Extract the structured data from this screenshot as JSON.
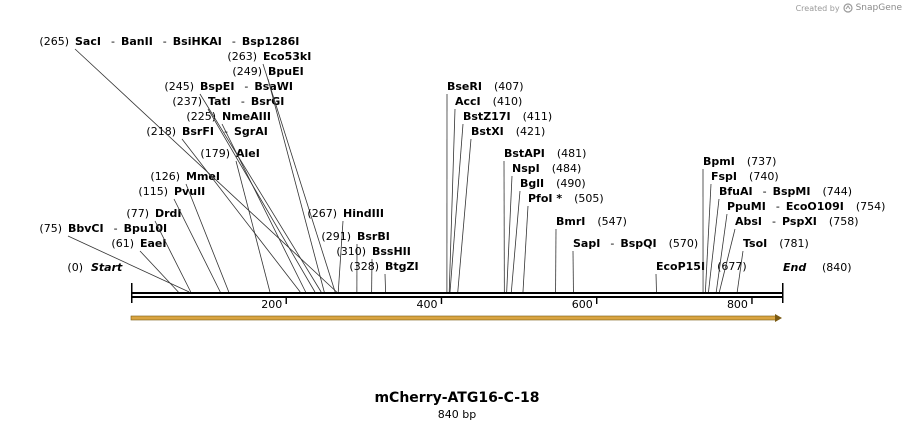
{
  "credit": {
    "prefix": "Created by",
    "brand": "SnapGene"
  },
  "map": {
    "title": "mCherry-ATG16-C-18",
    "length_label": "840 bp",
    "length_bp": 840,
    "start": {
      "label": "Start",
      "pos": "(0)"
    },
    "end": {
      "label": "End",
      "pos": "(840)"
    },
    "ticks": [
      200,
      400,
      600,
      800
    ],
    "feature_arrow_color": "#d9a441",
    "sites": [
      {
        "pos_label": "(61)",
        "names": [
          "EaeI"
        ],
        "bp": 61
      },
      {
        "pos_label": "(75)",
        "names": [
          "BbvCI",
          "Bpu10I"
        ],
        "bp": 75
      },
      {
        "pos_label": "(77)",
        "names": [
          "DrdI"
        ],
        "bp": 77
      },
      {
        "pos_label": "(115)",
        "names": [
          "PvuII"
        ],
        "bp": 115
      },
      {
        "pos_label": "(126)",
        "names": [
          "MmeI"
        ],
        "bp": 126
      },
      {
        "pos_label": "(179)",
        "names": [
          "AleI"
        ],
        "bp": 179
      },
      {
        "pos_label": "(218)",
        "names": [
          "BsrFI",
          "SgrAI"
        ],
        "bp": 218
      },
      {
        "pos_label": "(225)",
        "names": [
          "NmeAIII"
        ],
        "bp": 225
      },
      {
        "pos_label": "(237)",
        "names": [
          "TatI",
          "BsrGI"
        ],
        "bp": 237
      },
      {
        "pos_label": "(245)",
        "names": [
          "BspEI",
          "BsaWI"
        ],
        "bp": 245
      },
      {
        "pos_label": "(249)",
        "names": [
          "BpuEI"
        ],
        "bp": 249
      },
      {
        "pos_label": "(263)",
        "names": [
          "Eco53kI"
        ],
        "bp": 263
      },
      {
        "pos_label": "(265)",
        "names": [
          "SacI",
          "BanII",
          "BsiHKAI",
          "Bsp1286I"
        ],
        "bp": 265
      },
      {
        "pos_label": "(267)",
        "names": [
          "HindIII"
        ],
        "bp": 267
      },
      {
        "pos_label": "(291)",
        "names": [
          "BsrBI"
        ],
        "bp": 291
      },
      {
        "pos_label": "(310)",
        "names": [
          "BssHII"
        ],
        "bp": 310
      },
      {
        "pos_label": "(328)",
        "names": [
          "BtgZI"
        ],
        "bp": 328
      },
      {
        "pos_label": "(407)",
        "names": [
          "BseRI"
        ],
        "bp": 407
      },
      {
        "pos_label": "(410)",
        "names": [
          "AccI"
        ],
        "bp": 410
      },
      {
        "pos_label": "(411)",
        "names": [
          "BstZ17I"
        ],
        "bp": 411
      },
      {
        "pos_label": "(421)",
        "names": [
          "BstXI"
        ],
        "bp": 421
      },
      {
        "pos_label": "(481)",
        "names": [
          "BstAPI"
        ],
        "bp": 481
      },
      {
        "pos_label": "(484)",
        "names": [
          "NspI"
        ],
        "bp": 484
      },
      {
        "pos_label": "(490)",
        "names": [
          "BglI"
        ],
        "bp": 490
      },
      {
        "pos_label": "(505)",
        "names": [
          "PfoI *"
        ],
        "bp": 505
      },
      {
        "pos_label": "(547)",
        "names": [
          "BmrI"
        ],
        "bp": 547
      },
      {
        "pos_label": "(570)",
        "names": [
          "SapI",
          "BspQI"
        ],
        "bp": 570
      },
      {
        "pos_label": "(677)",
        "names": [
          "EcoP15I"
        ],
        "bp": 677
      },
      {
        "pos_label": "(737)",
        "names": [
          "BpmI"
        ],
        "bp": 737
      },
      {
        "pos_label": "(740)",
        "names": [
          "FspI"
        ],
        "bp": 740
      },
      {
        "pos_label": "(744)",
        "names": [
          "BfuAI",
          "BspMI"
        ],
        "bp": 744
      },
      {
        "pos_label": "(754)",
        "names": [
          "PpuMI",
          "EcoO109I"
        ],
        "bp": 754
      },
      {
        "pos_label": "(758)",
        "names": [
          "AbsI",
          "PspXI"
        ],
        "bp": 758
      },
      {
        "pos_label": "(781)",
        "names": [
          "TsoI"
        ],
        "bp": 781
      }
    ]
  }
}
